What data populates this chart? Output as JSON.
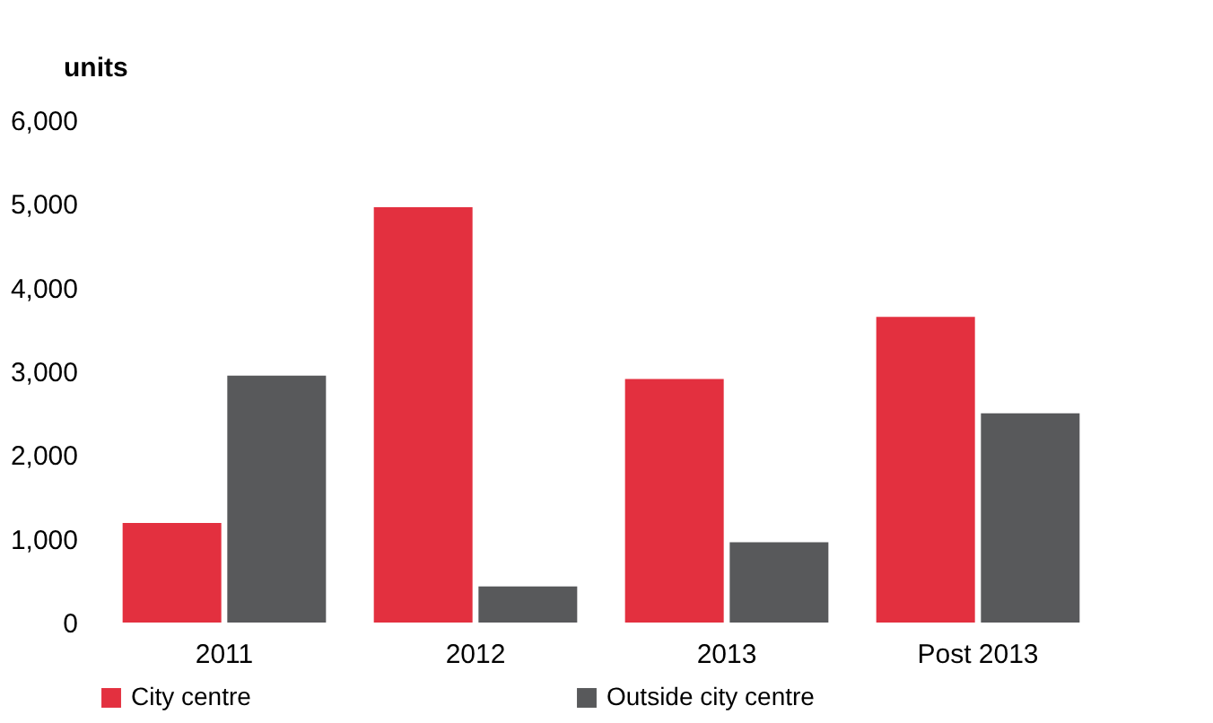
{
  "chart_data": {
    "type": "bar",
    "ylabel": "units",
    "categories": [
      "2011",
      "2012",
      "2013",
      "Post 2013"
    ],
    "series": [
      {
        "name": "City centre",
        "color": "#e3303f",
        "values": [
          1190,
          4960,
          2910,
          3650
        ]
      },
      {
        "name": "Outside city centre",
        "color": "#58595b",
        "values": [
          2950,
          430,
          960,
          2500
        ]
      }
    ],
    "ylim": [
      0,
      6000
    ],
    "yticks": [
      0,
      {
        "value": 1000,
        "label": "1,000"
      },
      {
        "value": 2000,
        "label": "2,000"
      },
      {
        "value": 3000,
        "label": "3,000"
      },
      {
        "value": 4000,
        "label": "4,000"
      },
      {
        "value": 5000,
        "label": "5,000"
      },
      {
        "value": 6000,
        "label": "6,000"
      }
    ],
    "grid": false,
    "legend": "bottom"
  }
}
